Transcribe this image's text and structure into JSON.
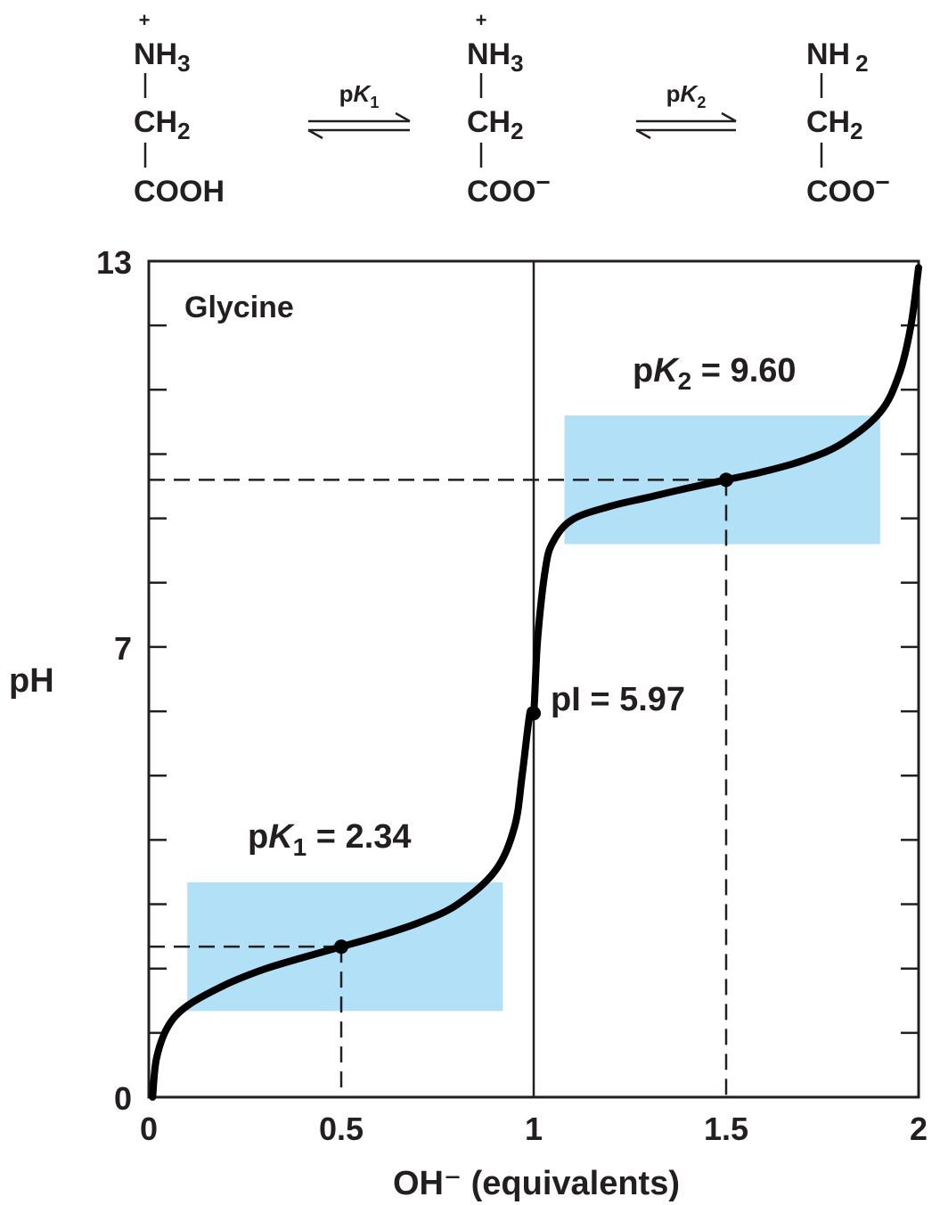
{
  "equilibrium": {
    "species": [
      {
        "top_charge": "+",
        "top": "NH",
        "top_sub": "3",
        "middle": "CH",
        "middle_sub": "2",
        "bottom": "COOH",
        "bottom_charge": ""
      },
      {
        "top_charge": "+",
        "top": "NH",
        "top_sub": "3",
        "middle": "CH",
        "middle_sub": "2",
        "bottom": "COO",
        "bottom_charge": "−"
      },
      {
        "top_charge": "",
        "top": "NH",
        "top_sub": "2",
        "middle": "CH",
        "middle_sub": "2",
        "bottom": "COO",
        "bottom_charge": "−"
      }
    ],
    "arrows": [
      {
        "label_p": "p",
        "label_k": "K",
        "label_sub": "1"
      },
      {
        "label_p": "p",
        "label_k": "K",
        "label_sub": "2"
      }
    ]
  },
  "chart_data": {
    "type": "line",
    "title": "Glycine",
    "xlabel": "OH⁻ (equivalents)",
    "ylabel": "pH",
    "xlim": [
      0,
      2
    ],
    "ylim": [
      0,
      13
    ],
    "xticks": [
      {
        "value": 0,
        "label": "0"
      },
      {
        "value": 0.5,
        "label": "0.5"
      },
      {
        "value": 1,
        "label": "1"
      },
      {
        "value": 1.5,
        "label": "1.5"
      },
      {
        "value": 2,
        "label": "2"
      }
    ],
    "yticks": [
      {
        "value": 0,
        "label": "0"
      },
      {
        "value": 7,
        "label": "7"
      },
      {
        "value": 13,
        "label": "13"
      }
    ],
    "yticks_minor": [
      1,
      2,
      3,
      4,
      5,
      6,
      8,
      9,
      10,
      11,
      12
    ],
    "series": [
      {
        "x": [
          0.01,
          0.02,
          0.05,
          0.1,
          0.2,
          0.3,
          0.4,
          0.5,
          0.6,
          0.7,
          0.8,
          0.9,
          0.95,
          0.97,
          0.99,
          1.0,
          1.01,
          1.03,
          1.05,
          1.1,
          1.2,
          1.3,
          1.4,
          1.5,
          1.6,
          1.7,
          1.8,
          1.9,
          1.95,
          1.98,
          2.0
        ],
        "y": [
          0.0,
          0.6,
          1.1,
          1.42,
          1.75,
          1.99,
          2.17,
          2.34,
          2.51,
          2.71,
          2.99,
          3.52,
          4.2,
          5.0,
          5.97,
          5.97,
          7.1,
          8.2,
          8.63,
          8.98,
          9.19,
          9.33,
          9.47,
          9.6,
          9.73,
          9.9,
          10.16,
          10.65,
          11.25,
          12.0,
          12.9
        ],
        "color": "#000000"
      }
    ],
    "points": [
      {
        "x": 0.5,
        "y": 2.34
      },
      {
        "x": 1.0,
        "y": 5.97
      },
      {
        "x": 1.5,
        "y": 9.6
      }
    ],
    "buffer_regions": [
      {
        "x": [
          0.1,
          0.92
        ],
        "y": [
          1.34,
          3.34
        ],
        "color": "#b2e1f7"
      },
      {
        "x": [
          1.08,
          1.9
        ],
        "y": [
          8.6,
          10.6
        ],
        "color": "#b2e1f7"
      }
    ],
    "vertical_line_x": 1,
    "annotations": [
      {
        "name": "pk1",
        "p": "p",
        "k": "K",
        "sub": "1",
        "text": " = 2.34"
      },
      {
        "name": "pk2",
        "p": "p",
        "k": "K",
        "sub": "2",
        "text": " = 9.60"
      },
      {
        "name": "pi",
        "text": "pI = 5.97"
      }
    ],
    "grid": false
  }
}
